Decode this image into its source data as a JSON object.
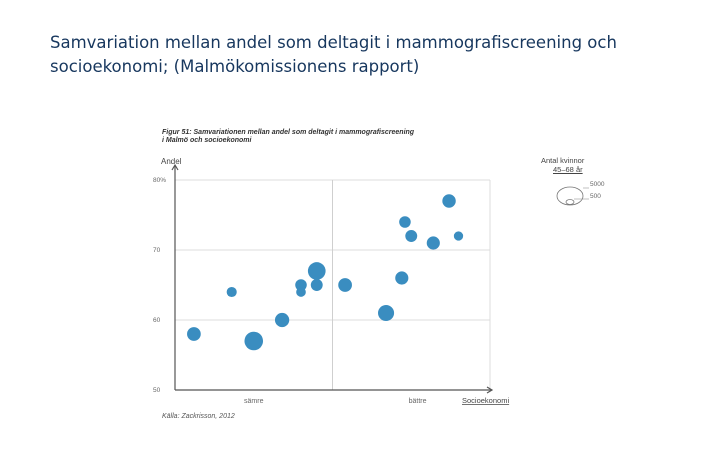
{
  "slide": {
    "title_line1": "Samvariation mellan andel som deltagit i mammografiscreening och",
    "title_line2": "socioekonomi; (Malmökomissionens rapport)"
  },
  "figure": {
    "caption_line1": "Figur 51: Samvariationen mellan andel som deltagit i mammografiscreening",
    "caption_line2": "i Malmö och socioekonomi",
    "source": "Källa: Zackrisson, 2012"
  },
  "legend": {
    "title": "Antal kvinnor",
    "subtitle": "45–68 år",
    "size_large": "5000",
    "size_small": "500"
  },
  "chart_data": {
    "type": "scatter",
    "ylabel": "Andel",
    "xlabel": "Socioekonomi",
    "x_tick_labels": [
      "sämre",
      "bättre"
    ],
    "y_ticks": [
      {
        "value": 50,
        "label": "50"
      },
      {
        "value": 60,
        "label": "60"
      },
      {
        "value": 70,
        "label": "70"
      },
      {
        "value": 80,
        "label": "80%"
      }
    ],
    "ylim": [
      50,
      80
    ],
    "xlim": [
      0,
      100
    ],
    "grid": true,
    "x_reference_line": 50,
    "legend_position": "top-right",
    "color": "#3a8dc0",
    "points": [
      {
        "x": 6,
        "y": 58,
        "size": 2400
      },
      {
        "x": 18,
        "y": 64,
        "size": 1300
      },
      {
        "x": 25,
        "y": 57,
        "size": 4400
      },
      {
        "x": 34,
        "y": 60,
        "size": 2600
      },
      {
        "x": 40,
        "y": 65,
        "size": 1700
      },
      {
        "x": 40,
        "y": 64,
        "size": 1200
      },
      {
        "x": 45,
        "y": 65,
        "size": 1800
      },
      {
        "x": 45,
        "y": 67,
        "size": 4000
      },
      {
        "x": 54,
        "y": 65,
        "size": 2400
      },
      {
        "x": 67,
        "y": 61,
        "size": 3300
      },
      {
        "x": 72,
        "y": 66,
        "size": 2200
      },
      {
        "x": 73,
        "y": 74,
        "size": 1700
      },
      {
        "x": 75,
        "y": 72,
        "size": 1800
      },
      {
        "x": 82,
        "y": 71,
        "size": 2200
      },
      {
        "x": 87,
        "y": 77,
        "size": 2300
      },
      {
        "x": 90,
        "y": 72,
        "size": 1100
      }
    ]
  }
}
